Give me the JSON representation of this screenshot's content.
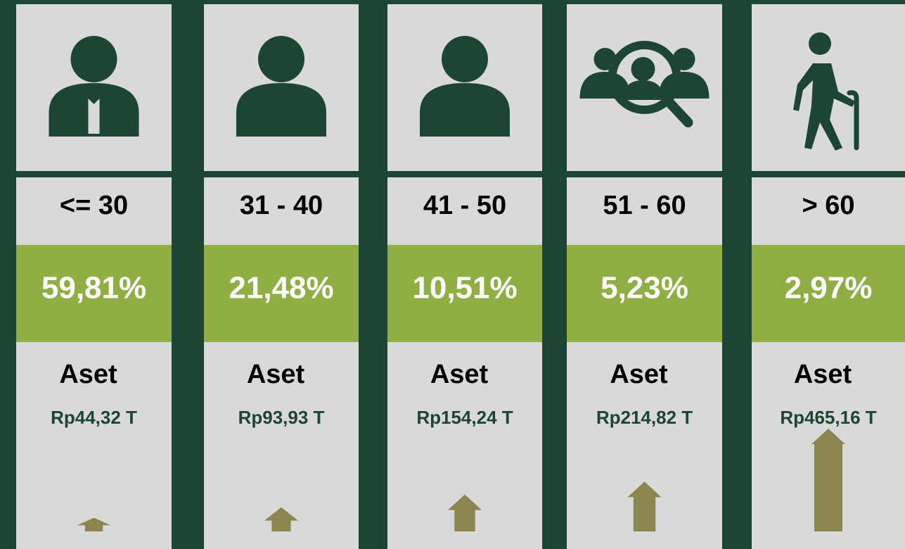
{
  "chart_data": {
    "type": "bar",
    "categories": [
      "<= 30",
      "31 - 40",
      "41 - 50",
      "51 - 60",
      "> 60"
    ],
    "shares": [
      59.81,
      21.48,
      10.51,
      5.23,
      2.97
    ],
    "share_labels": [
      "59,81%",
      "21,48%",
      "10,51%",
      "5,23%",
      "2,97%"
    ],
    "value_title": "Aset",
    "values": [
      44.32,
      93.93,
      154.24,
      214.82,
      465.16
    ],
    "value_labels": [
      "Rp44,32 T",
      "Rp93,93 T",
      "Rp154,24 T",
      "Rp214,82 T",
      "Rp465,16 T"
    ],
    "color": "#8b8650"
  }
}
